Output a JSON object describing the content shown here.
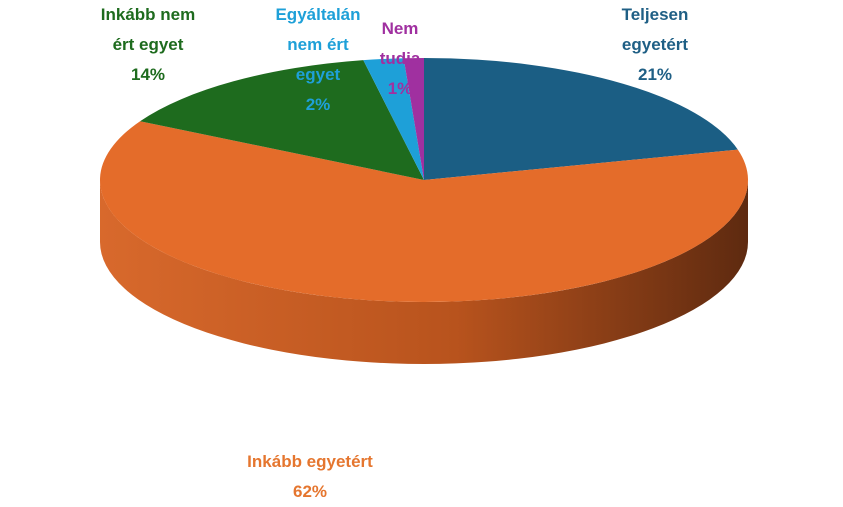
{
  "chart_data": {
    "type": "pie",
    "categories": [
      "Teljesen egyetért",
      "Inkább egyetért",
      "Inkább nem ért egyet",
      "Egyáltalán nem ért egyet",
      "Nem tudja"
    ],
    "values": [
      21,
      62,
      14,
      2,
      1
    ],
    "value_labels": [
      "21%",
      "62%",
      "14%",
      "2%",
      "1%"
    ],
    "colors": [
      "#1b5e84",
      "#e46c2a",
      "#1e6b1e",
      "#1ea0d8",
      "#a030a0"
    ]
  }
}
